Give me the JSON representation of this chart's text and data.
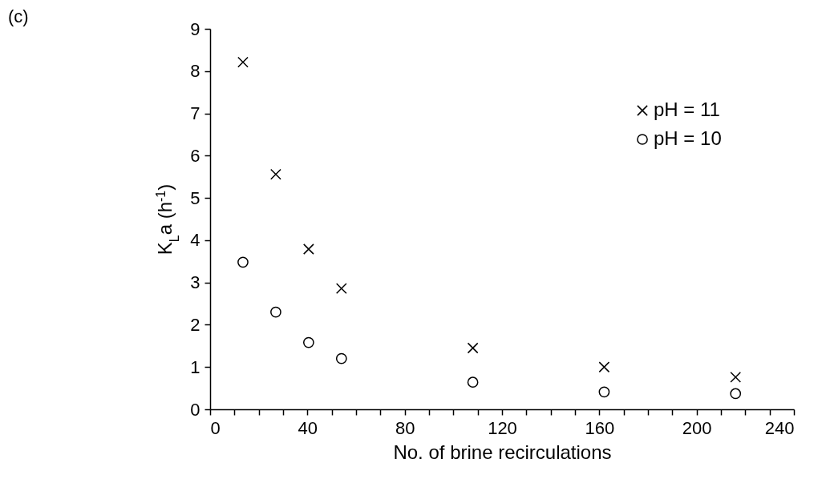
{
  "chart_data": {
    "type": "scatter",
    "xlabel": "No. of brine recirculations",
    "ylabel": "K$_{L}$a (h$^{-1}$)",
    "annotations": [
      "(c)"
    ],
    "x": [
      13.5,
      27,
      40.5,
      54,
      108,
      162,
      216
    ],
    "series": [
      {
        "name": "pH = 11",
        "color": "#000000",
        "marker": "cross",
        "values": [
          8.21,
          5.56,
          3.79,
          2.86,
          1.45,
          1.0,
          0.76
        ]
      },
      {
        "name": "pH = 10",
        "color": "#000000",
        "marker": "circle",
        "values": [
          3.48,
          2.3,
          1.58,
          1.2,
          0.64,
          0.41,
          0.37
        ]
      }
    ],
    "xlim": [
      0,
      240
    ],
    "ylim": [
      0,
      9
    ],
    "xticks": [
      0,
      {
        "value": 10,
        "label": null
      },
      {
        "value": 20,
        "label": null
      },
      {
        "value": 30,
        "label": null
      },
      40,
      {
        "value": 50,
        "label": null
      },
      {
        "value": 60,
        "label": null
      },
      {
        "value": 70,
        "label": null
      },
      80,
      {
        "value": 90,
        "label": null
      },
      {
        "value": 100,
        "label": null
      },
      {
        "value": 110,
        "label": null
      },
      120,
      {
        "value": 130,
        "label": null
      },
      {
        "value": 140,
        "label": null
      },
      {
        "value": 150,
        "label": null
      },
      160,
      {
        "value": 170,
        "label": null
      },
      {
        "value": 180,
        "label": null
      },
      {
        "value": 190,
        "label": null
      },
      200,
      {
        "value": 210,
        "label": null
      },
      {
        "value": 220,
        "label": null
      },
      {
        "value": 230,
        "label": null
      },
      240
    ],
    "yticks": [
      0,
      1,
      2,
      3,
      4,
      5,
      6,
      7,
      8,
      9
    ],
    "grid": false,
    "legend": "top right"
  }
}
